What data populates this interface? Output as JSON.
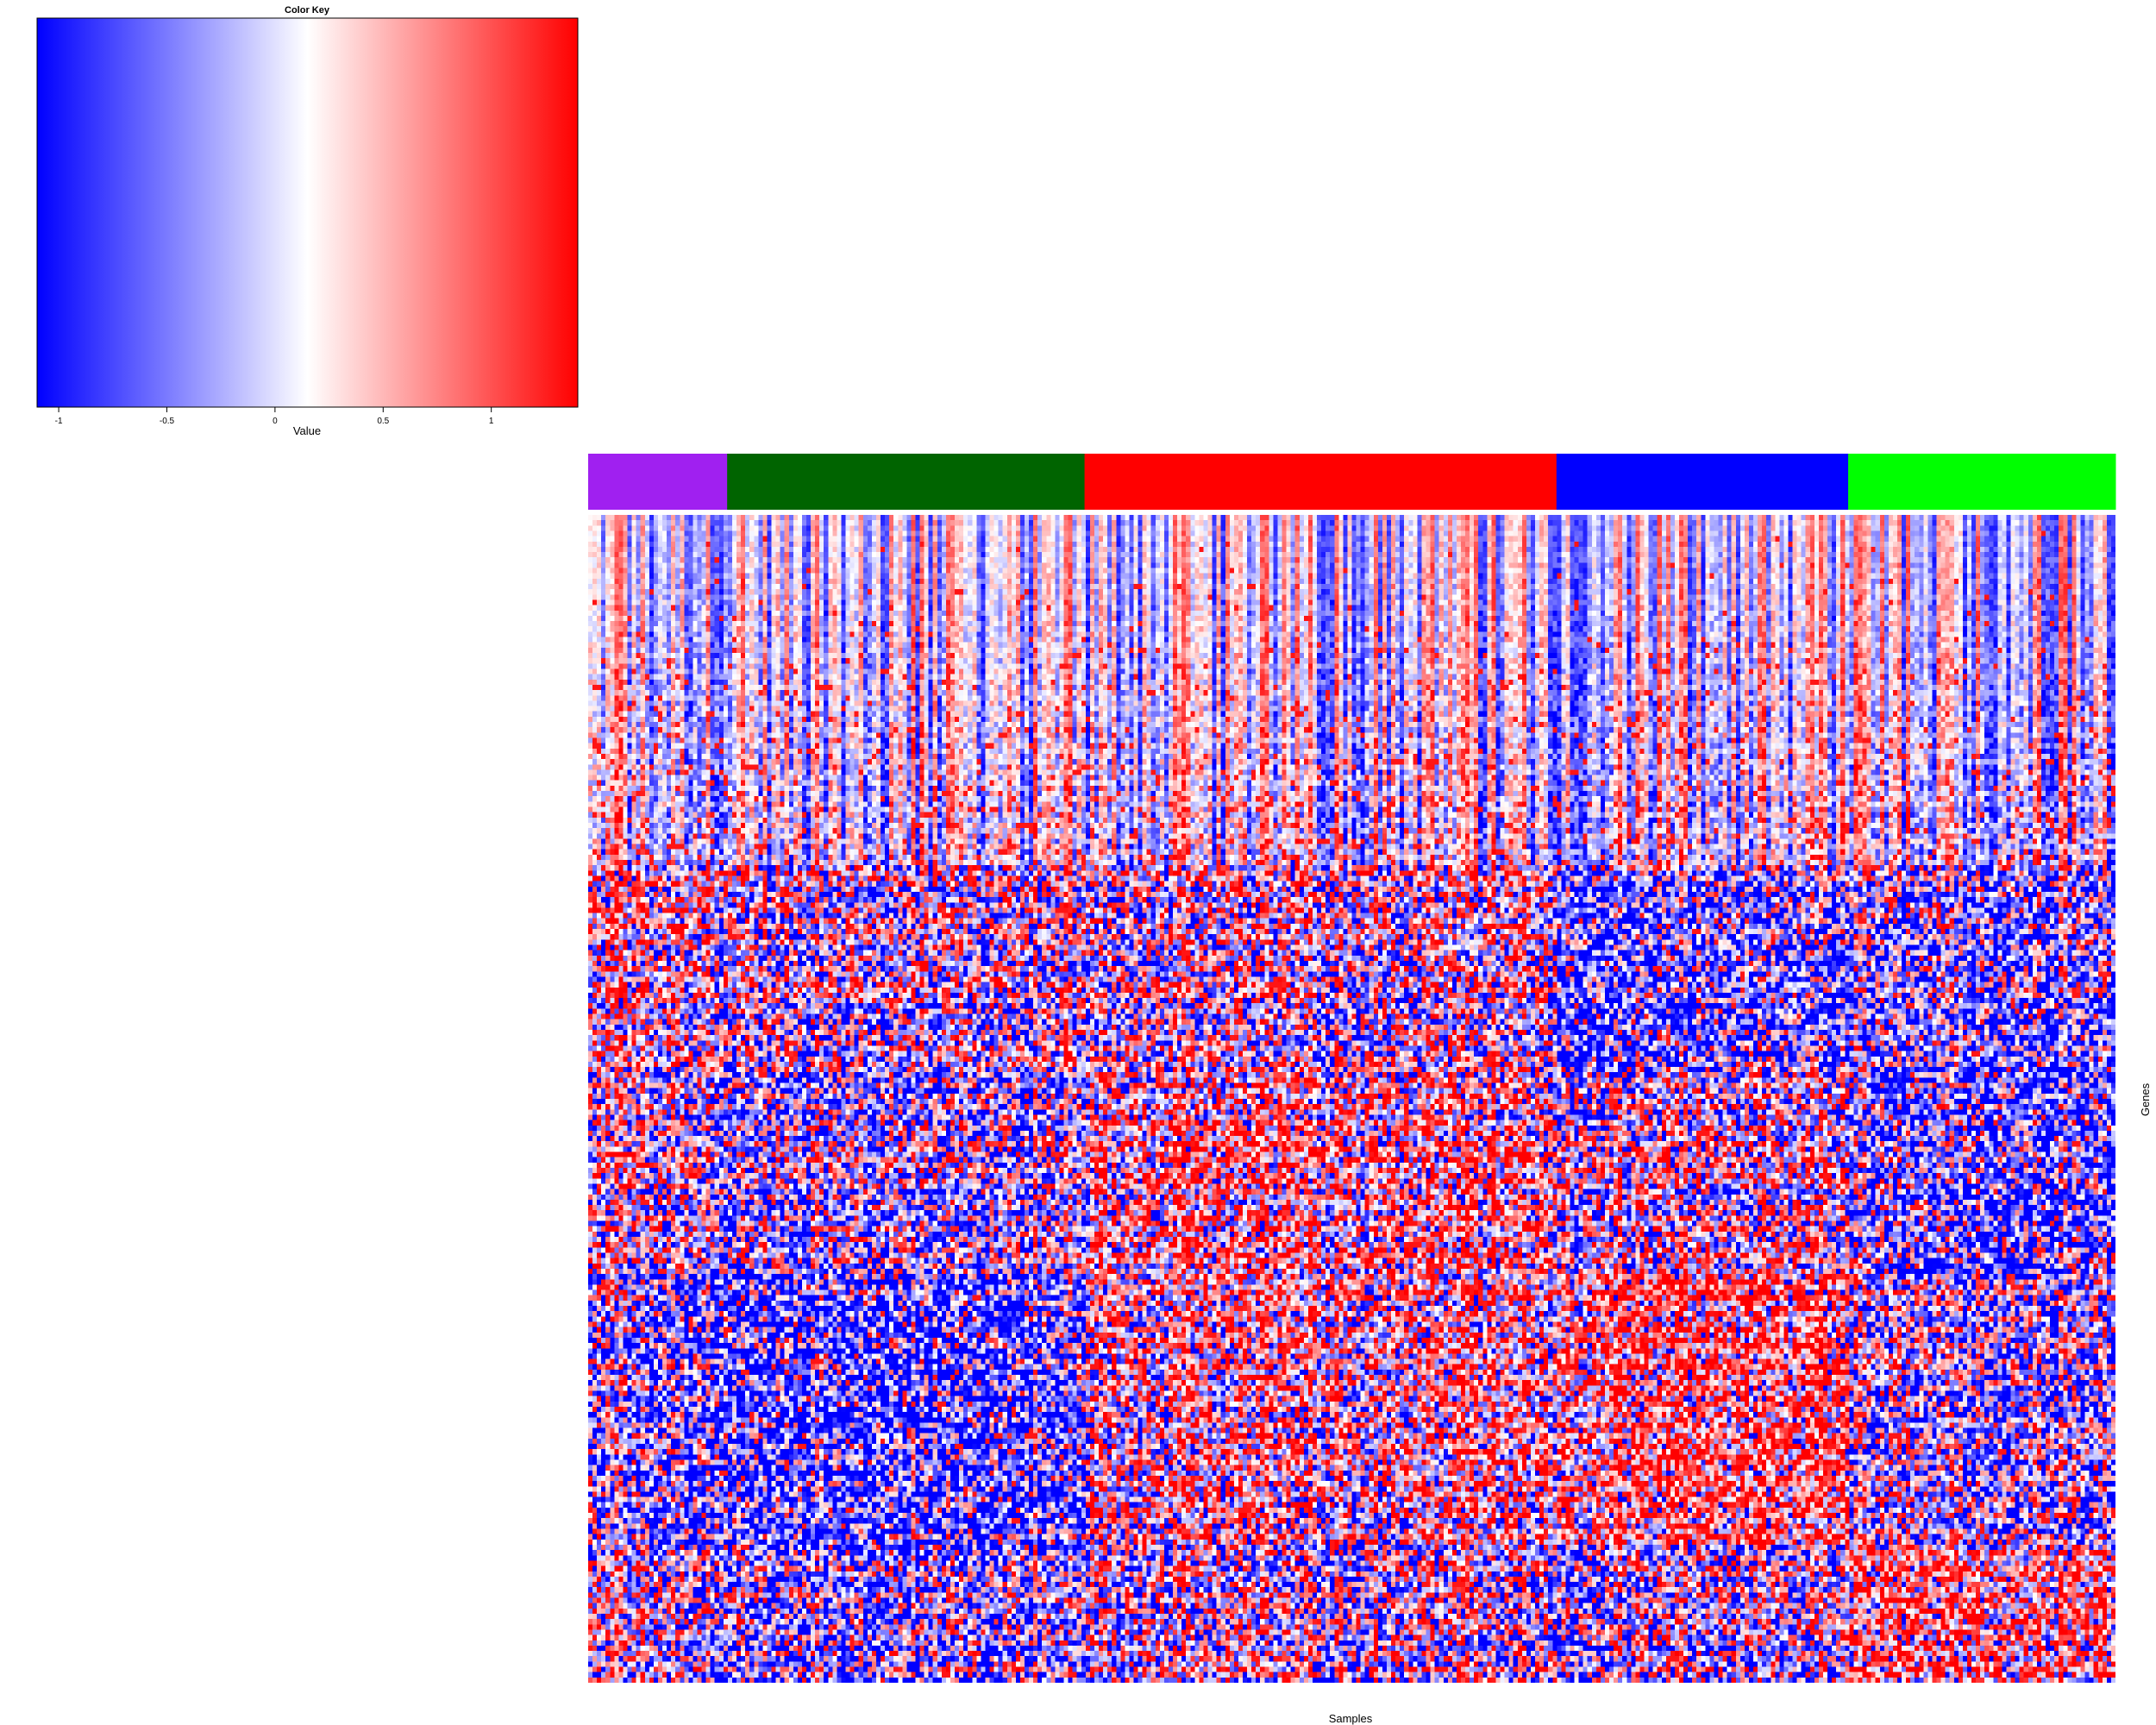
{
  "chart_data": {
    "type": "heatmap",
    "xlabel": "Samples",
    "ylabel": "Genes",
    "color_key": {
      "title": "Color Key",
      "xlabel": "Value",
      "range": [
        -1.1,
        1.4
      ],
      "ticks": [
        -1,
        -0.5,
        0,
        0.5,
        1
      ],
      "tick_labels": [
        "-1",
        "-0.5",
        "0",
        "0.5",
        "1"
      ],
      "low_color": "#0000ff",
      "mid_color": "#ffffff",
      "high_color": "#ff0000",
      "midpoint": 0.15
    },
    "column_groups": [
      {
        "color": "#a020f0",
        "fraction": 0.091
      },
      {
        "color": "#006400",
        "fraction": 0.234
      },
      {
        "color": "#ff0000",
        "fraction": 0.309
      },
      {
        "color": "#0000ff",
        "fraction": 0.191
      },
      {
        "color": "#00ff00",
        "fraction": 0.175
      }
    ],
    "matrix": {
      "n_columns": 350,
      "n_rows": 220,
      "value_range": [
        -1.1,
        1.4
      ],
      "row_blocks": [
        {
          "from": 0.0,
          "to": 0.3,
          "pattern": "column-dominant stripes"
        },
        {
          "from": 0.3,
          "to": 0.47,
          "pattern": "mixed"
        },
        {
          "from": 0.47,
          "to": 0.65,
          "pattern": "mixed with group-specific high blocks"
        },
        {
          "from": 0.65,
          "to": 0.88,
          "pattern": "group-specific high/low blocks"
        },
        {
          "from": 0.88,
          "to": 1.0,
          "pattern": "mixed, high in last group"
        }
      ]
    }
  }
}
